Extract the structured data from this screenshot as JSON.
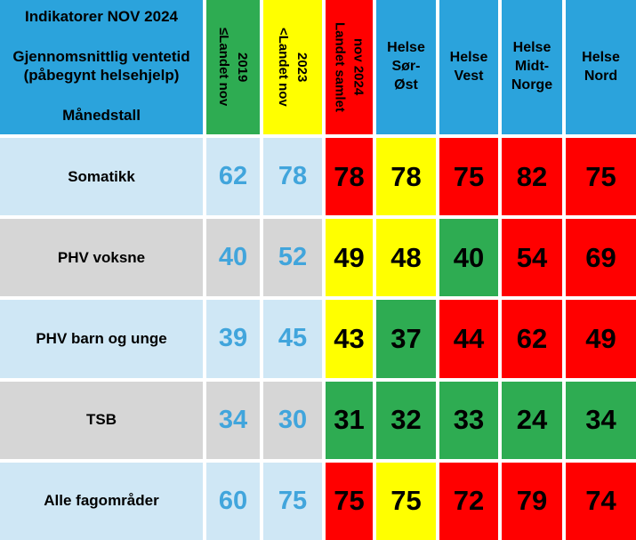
{
  "colors": {
    "header_blue": "#2BA3DC",
    "row_light_blue": "#CFE7F5",
    "row_gray": "#D6D6D6",
    "status_green": "#2EAC52",
    "status_yellow": "#FFFF00",
    "status_red": "#FF0000",
    "ref_number_blue": "#41A5DC"
  },
  "header": {
    "title_line1": "Indikatorer NOV 2024",
    "title_line2": "Gjennomsnittlig ventetid (påbegynt helsehjelp)",
    "title_line3": "Månedstall",
    "col_2019": {
      "line1": "≤Landet nov",
      "line2": "2019",
      "bg": "#2EAC52"
    },
    "col_2023": {
      "line1": "<Landet nov",
      "line2": "2023",
      "bg": "#FFFF00"
    },
    "col_2024": {
      "line1": "Landet samlet",
      "line2": "nov 2024",
      "bg": "#FF0000"
    },
    "regions": [
      {
        "name": "Helse Sør-Øst",
        "lines": [
          "Helse",
          "Sør-",
          "Øst"
        ]
      },
      {
        "name": "Helse Vest",
        "lines": [
          "Helse",
          "Vest"
        ]
      },
      {
        "name": "Helse Midt-Norge",
        "lines": [
          "Helse",
          "Midt-",
          "Norge"
        ]
      },
      {
        "name": "Helse Nord",
        "lines": [
          "Helse",
          "Nord"
        ]
      }
    ]
  },
  "rows": [
    {
      "label": "Somatikk",
      "row_bg": "#CFE7F5",
      "ref_values": [
        "62",
        "78"
      ],
      "cells": [
        {
          "value": "78",
          "bg": "#FF0000"
        },
        {
          "value": "78",
          "bg": "#FFFF00"
        },
        {
          "value": "75",
          "bg": "#FF0000"
        },
        {
          "value": "82",
          "bg": "#FF0000"
        },
        {
          "value": "75",
          "bg": "#FF0000"
        }
      ]
    },
    {
      "label": "PHV voksne",
      "row_bg": "#D6D6D6",
      "ref_values": [
        "40",
        "52"
      ],
      "cells": [
        {
          "value": "49",
          "bg": "#FFFF00"
        },
        {
          "value": "48",
          "bg": "#FFFF00"
        },
        {
          "value": "40",
          "bg": "#2EAC52"
        },
        {
          "value": "54",
          "bg": "#FF0000"
        },
        {
          "value": "69",
          "bg": "#FF0000"
        }
      ]
    },
    {
      "label": "PHV barn og unge",
      "row_bg": "#CFE7F5",
      "ref_values": [
        "39",
        "45"
      ],
      "cells": [
        {
          "value": "43",
          "bg": "#FFFF00"
        },
        {
          "value": "37",
          "bg": "#2EAC52"
        },
        {
          "value": "44",
          "bg": "#FF0000"
        },
        {
          "value": "62",
          "bg": "#FF0000"
        },
        {
          "value": "49",
          "bg": "#FF0000"
        }
      ]
    },
    {
      "label": "TSB",
      "row_bg": "#D6D6D6",
      "ref_values": [
        "34",
        "30"
      ],
      "cells": [
        {
          "value": "31",
          "bg": "#2EAC52"
        },
        {
          "value": "32",
          "bg": "#2EAC52"
        },
        {
          "value": "33",
          "bg": "#2EAC52"
        },
        {
          "value": "24",
          "bg": "#2EAC52"
        },
        {
          "value": "34",
          "bg": "#2EAC52"
        }
      ]
    },
    {
      "label": "Alle fagområder",
      "row_bg": "#CFE7F5",
      "ref_values": [
        "60",
        "75"
      ],
      "cells": [
        {
          "value": "75",
          "bg": "#FF0000"
        },
        {
          "value": "75",
          "bg": "#FFFF00"
        },
        {
          "value": "72",
          "bg": "#FF0000"
        },
        {
          "value": "79",
          "bg": "#FF0000"
        },
        {
          "value": "74",
          "bg": "#FF0000"
        }
      ]
    }
  ],
  "chart_data": {
    "type": "table",
    "title": "Indikatorer NOV 2024",
    "subtitle": "Gjennomsnittlig ventetid (påbegynt helsehjelp) — Månedstall",
    "columns": [
      "≤Landet nov 2019",
      "<Landet nov 2023",
      "Landet samlet nov 2024",
      "Helse Sør-Øst",
      "Helse Vest",
      "Helse Midt-Norge",
      "Helse Nord"
    ],
    "row_labels": [
      "Somatikk",
      "PHV voksne",
      "PHV barn og unge",
      "TSB",
      "Alle fagområder"
    ],
    "values": [
      [
        62,
        78,
        78,
        78,
        75,
        82,
        75
      ],
      [
        40,
        52,
        49,
        48,
        40,
        54,
        69
      ],
      [
        39,
        45,
        43,
        37,
        44,
        62,
        49
      ],
      [
        34,
        30,
        31,
        32,
        33,
        24,
        34
      ],
      [
        60,
        75,
        75,
        75,
        72,
        79,
        74
      ]
    ],
    "cell_status_colors": [
      [
        "none",
        "none",
        "red",
        "yellow",
        "red",
        "red",
        "red"
      ],
      [
        "none",
        "none",
        "yellow",
        "yellow",
        "green",
        "red",
        "red"
      ],
      [
        "none",
        "none",
        "yellow",
        "green",
        "red",
        "red",
        "red"
      ],
      [
        "none",
        "none",
        "green",
        "green",
        "green",
        "green",
        "green"
      ],
      [
        "none",
        "none",
        "red",
        "yellow",
        "red",
        "red",
        "red"
      ]
    ]
  }
}
